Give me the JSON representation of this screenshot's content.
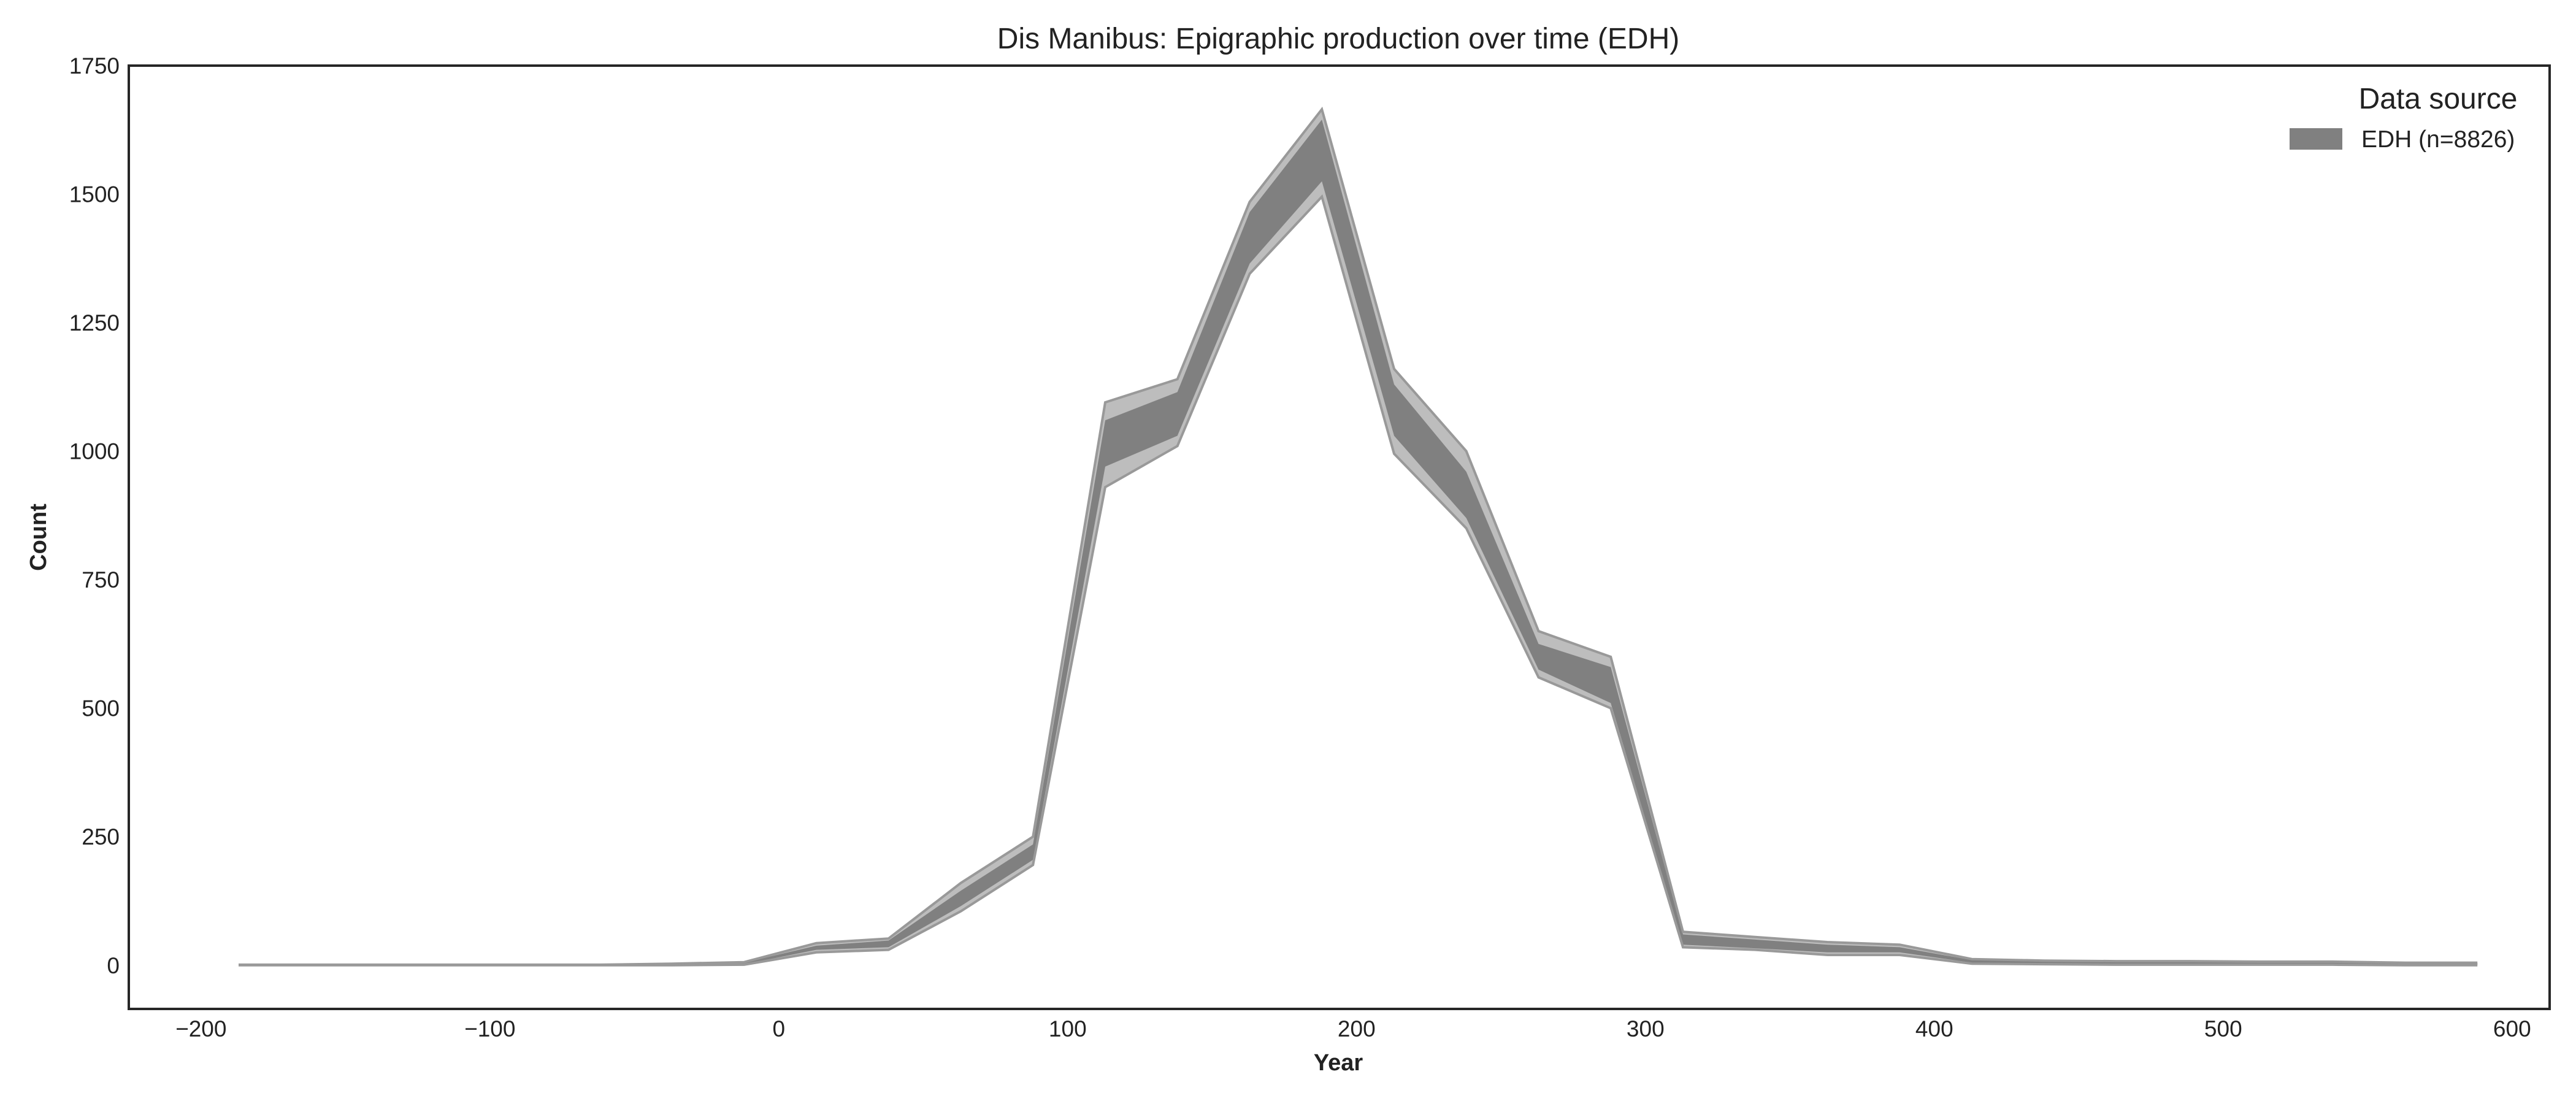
{
  "chart_data": {
    "type": "area",
    "title": "Dis Manibus: Epigraphic production over time (EDH)",
    "xlabel": "Year",
    "ylabel": "Count",
    "xlim": [
      -225,
      613
    ],
    "ylim": [
      -85,
      1750
    ],
    "xticks": [
      -200,
      -100,
      0,
      100,
      200,
      300,
      400,
      500,
      600
    ],
    "xtick_labels": [
      "−200",
      "−100",
      "0",
      "100",
      "200",
      "300",
      "400",
      "500",
      "600"
    ],
    "yticks": [
      0,
      250,
      500,
      750,
      1000,
      1250,
      1500,
      1750
    ],
    "ytick_labels": [
      "0",
      "250",
      "500",
      "750",
      "1000",
      "1250",
      "1500",
      "1750"
    ],
    "grid": false,
    "legend": {
      "title": "Data source",
      "placement": "top-right",
      "entries": [
        "EDH (n=8826)"
      ]
    },
    "colors": {
      "outer_band": "#bdbdbd",
      "inner_band": "#808080",
      "outline": "#999999"
    },
    "x": [
      -187,
      -162,
      -137,
      -112,
      -87,
      -62,
      -37,
      -12,
      13,
      38,
      63,
      88,
      113,
      138,
      163,
      188,
      213,
      238,
      263,
      288,
      313,
      338,
      363,
      388,
      413,
      438,
      463,
      488,
      513,
      538,
      563,
      588
    ],
    "series": [
      {
        "name": "EDH (n=8826)",
        "outer_upper": [
          1,
          1,
          1,
          1,
          1,
          1,
          3,
          6,
          43,
          52,
          160,
          250,
          1095,
          1140,
          1485,
          1665,
          1160,
          1000,
          650,
          600,
          65,
          55,
          45,
          40,
          12,
          9,
          8,
          8,
          7,
          7,
          5,
          5
        ],
        "inner_upper": [
          1,
          1,
          1,
          1,
          1,
          1,
          2,
          5,
          38,
          48,
          145,
          235,
          1060,
          1115,
          1465,
          1645,
          1130,
          960,
          625,
          580,
          60,
          50,
          40,
          35,
          10,
          8,
          7,
          7,
          6,
          6,
          4,
          4
        ],
        "inner_lower": [
          0,
          0,
          0,
          0,
          0,
          0,
          1,
          2,
          30,
          35,
          115,
          205,
          970,
          1030,
          1365,
          1525,
          1030,
          870,
          575,
          510,
          40,
          33,
          25,
          25,
          5,
          3,
          2,
          2,
          2,
          2,
          1,
          1
        ],
        "outer_lower": [
          0,
          0,
          0,
          0,
          0,
          0,
          0,
          1,
          25,
          30,
          105,
          195,
          930,
          1010,
          1345,
          1495,
          995,
          850,
          560,
          500,
          35,
          30,
          20,
          20,
          3,
          2,
          1,
          1,
          1,
          1,
          0,
          0
        ]
      }
    ]
  }
}
